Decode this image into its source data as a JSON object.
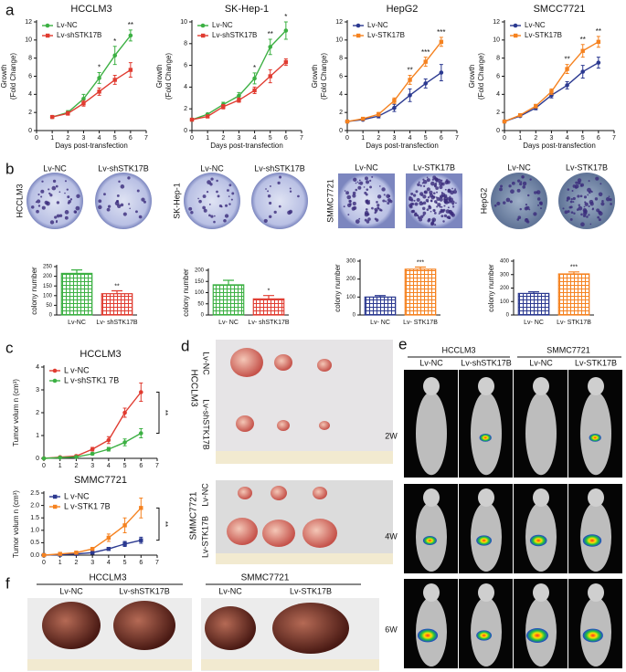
{
  "panel_labels": [
    "a",
    "b",
    "c",
    "d",
    "e",
    "f"
  ],
  "chart_data": [
    {
      "type": "line",
      "title": "HCCLM3",
      "ylabel": [
        "Growth",
        "(Fold Change)"
      ],
      "xlabel": "Days post-transfection",
      "x": [
        1,
        2,
        3,
        4,
        5,
        6
      ],
      "xlim": [
        0,
        7
      ],
      "xticks": [
        0,
        1,
        2,
        3,
        4,
        5,
        6,
        7
      ],
      "ylim": [
        0,
        12
      ],
      "yticks": [
        0,
        2,
        4,
        6,
        8,
        10,
        12
      ],
      "series": [
        {
          "name": "Lv-NC",
          "color": "#3cb043",
          "marker": "circle",
          "values": [
            1.5,
            2.0,
            3.5,
            5.8,
            8.3,
            10.5
          ],
          "errors": [
            0.1,
            0.2,
            0.5,
            0.6,
            1.0,
            0.6
          ]
        },
        {
          "name": "Lv-shSTK17B",
          "color": "#e03c31",
          "marker": "square",
          "values": [
            1.5,
            1.9,
            3.0,
            4.3,
            5.6,
            6.7
          ],
          "errors": [
            0.1,
            0.2,
            0.3,
            0.4,
            0.5,
            0.8
          ]
        }
      ],
      "annotations": [
        {
          "x": 4,
          "text": "*"
        },
        {
          "x": 5,
          "text": "*"
        },
        {
          "x": 6,
          "text": "**"
        }
      ]
    },
    {
      "type": "line",
      "title": "SK-Hep-1",
      "ylabel": [
        "Growth",
        "(Fold Change)"
      ],
      "xlabel": "Days post-transfection",
      "x": [
        0,
        1,
        2,
        3,
        4,
        5,
        6
      ],
      "xlim": [
        0,
        7
      ],
      "xticks": [
        0,
        1,
        2,
        3,
        4,
        5,
        6,
        7
      ],
      "ylim": [
        0,
        10
      ],
      "yticks": [
        0,
        2,
        4,
        6,
        8,
        10
      ],
      "series": [
        {
          "name": "Lv-NC",
          "color": "#3cb043",
          "marker": "circle",
          "values": [
            1.0,
            1.5,
            2.4,
            3.2,
            4.8,
            7.7,
            9.2
          ],
          "errors": [
            0.1,
            0.1,
            0.2,
            0.3,
            0.5,
            0.7,
            0.8
          ]
        },
        {
          "name": "Lv-shSTK17B",
          "color": "#e03c31",
          "marker": "square",
          "values": [
            1.0,
            1.3,
            2.2,
            2.8,
            3.7,
            5.0,
            6.3
          ],
          "errors": [
            0.1,
            0.1,
            0.2,
            0.2,
            0.3,
            0.6,
            0.3
          ]
        }
      ],
      "annotations": [
        {
          "x": 4,
          "text": "*"
        },
        {
          "x": 5,
          "text": "**"
        },
        {
          "x": 6,
          "text": "*"
        }
      ]
    },
    {
      "type": "line",
      "title": "HepG2",
      "ylabel": [
        "Growth",
        "(Fold Change)"
      ],
      "xlabel": "Days post-transfection",
      "x": [
        0,
        1,
        2,
        3,
        4,
        5,
        6
      ],
      "xlim": [
        0,
        7
      ],
      "xticks": [
        0,
        1,
        2,
        3,
        4,
        5,
        6,
        7
      ],
      "ylim": [
        0,
        12
      ],
      "yticks": [
        0,
        2,
        4,
        6,
        8,
        10,
        12
      ],
      "series": [
        {
          "name": "Lv-NC",
          "color": "#2b3990",
          "marker": "circle",
          "values": [
            1.0,
            1.2,
            1.6,
            2.5,
            3.9,
            5.2,
            6.4
          ],
          "errors": [
            0.1,
            0.1,
            0.2,
            0.4,
            0.7,
            0.5,
            0.9
          ]
        },
        {
          "name": "Lv-STK17B",
          "color": "#f58220",
          "marker": "square",
          "values": [
            1.0,
            1.3,
            1.8,
            3.3,
            5.6,
            7.6,
            9.8
          ],
          "errors": [
            0.1,
            0.1,
            0.2,
            0.3,
            0.5,
            0.5,
            0.5
          ]
        }
      ],
      "annotations": [
        {
          "x": 4,
          "text": "**"
        },
        {
          "x": 5,
          "text": "***"
        },
        {
          "x": 6,
          "text": "***"
        }
      ]
    },
    {
      "type": "line",
      "title": "SMCC7721",
      "ylabel": [
        "Growth",
        "(Fold Change)"
      ],
      "xlabel": "Days post-transfection",
      "x": [
        0,
        1,
        2,
        3,
        4,
        5,
        6
      ],
      "xlim": [
        0,
        7
      ],
      "xticks": [
        0,
        1,
        2,
        3,
        4,
        5,
        6,
        7
      ],
      "ylim": [
        0,
        12
      ],
      "yticks": [
        0,
        2,
        4,
        6,
        8,
        10,
        12
      ],
      "series": [
        {
          "name": "Lv-NC",
          "color": "#2b3990",
          "marker": "circle",
          "values": [
            1.0,
            1.6,
            2.5,
            3.9,
            5.0,
            6.5,
            7.5
          ],
          "errors": [
            0.1,
            0.1,
            0.2,
            0.3,
            0.4,
            0.7,
            0.6
          ]
        },
        {
          "name": "Lv-STK17B",
          "color": "#f58220",
          "marker": "square",
          "values": [
            1.0,
            1.7,
            2.7,
            4.3,
            6.8,
            8.8,
            9.8
          ],
          "errors": [
            0.1,
            0.1,
            0.2,
            0.3,
            0.5,
            0.7,
            0.6
          ]
        }
      ],
      "annotations": [
        {
          "x": 4,
          "text": "**"
        },
        {
          "x": 5,
          "text": "**"
        },
        {
          "x": 6,
          "text": "**"
        }
      ]
    },
    {
      "type": "bar",
      "ylabel": "colony number",
      "categories": [
        "Lv-NC",
        "Lv- shSTK17B"
      ],
      "values": [
        215,
        110
      ],
      "errors": [
        18,
        15
      ],
      "colors": [
        "#3cb043",
        "#e03c31"
      ],
      "ylim": [
        0,
        250
      ],
      "yticks": [
        0,
        50,
        100,
        150,
        200,
        250
      ],
      "significance": [
        null,
        "**"
      ]
    },
    {
      "type": "bar",
      "ylabel": "colony number",
      "categories": [
        "Lv- NC",
        "Lv- shSTK17B"
      ],
      "values": [
        135,
        72
      ],
      "errors": [
        20,
        15
      ],
      "colors": [
        "#3cb043",
        "#e03c31"
      ],
      "ylim": [
        0,
        200
      ],
      "yticks": [
        0,
        50,
        100,
        150,
        200
      ],
      "significance": [
        null,
        "*"
      ]
    },
    {
      "type": "bar",
      "ylabel": "colony number",
      "categories": [
        "Lv- NC",
        "Lv- STK17B"
      ],
      "values": [
        100,
        255
      ],
      "errors": [
        8,
        12
      ],
      "colors": [
        "#2b3990",
        "#f58220"
      ],
      "ylim": [
        0,
        300
      ],
      "yticks": [
        0,
        100,
        200,
        300
      ],
      "significance": [
        null,
        "***"
      ]
    },
    {
      "type": "bar",
      "ylabel": "colony number",
      "categories": [
        "Lv- NC",
        "Lv- STK17B"
      ],
      "values": [
        160,
        305
      ],
      "errors": [
        12,
        15
      ],
      "colors": [
        "#2b3990",
        "#f58220"
      ],
      "ylim": [
        0,
        400
      ],
      "yticks": [
        0,
        100,
        200,
        300,
        400
      ],
      "significance": [
        null,
        "***"
      ]
    },
    {
      "type": "line",
      "title": "HCCLM3",
      "ylabel": [
        "Tumor volum n (cm³)"
      ],
      "x": [
        0,
        1,
        2,
        3,
        4,
        5,
        6
      ],
      "xlim": [
        0,
        7
      ],
      "xticks": [
        0,
        1,
        2,
        3,
        4,
        5,
        6,
        7
      ],
      "ylim": [
        0,
        4
      ],
      "yticks": [
        0,
        1,
        2,
        3,
        4
      ],
      "series": [
        {
          "name": "L v-NC",
          "color": "#e03c31",
          "marker": "circle",
          "values": [
            0,
            0.05,
            0.1,
            0.4,
            0.8,
            2.0,
            2.9
          ],
          "errors": [
            0,
            0.02,
            0.05,
            0.08,
            0.15,
            0.2,
            0.4
          ]
        },
        {
          "name": "L v-shSTK1 7B",
          "color": "#3cb043",
          "marker": "circle",
          "values": [
            0,
            0.03,
            0.06,
            0.2,
            0.4,
            0.7,
            1.1
          ],
          "errors": [
            0,
            0.02,
            0.03,
            0.05,
            0.08,
            0.15,
            0.2
          ]
        }
      ],
      "annotations": [
        {
          "x": 6,
          "text": "**"
        }
      ],
      "bracket": true
    },
    {
      "type": "line",
      "title": "SMMC7721",
      "ylabel": [
        "Tumor volum n (cm³)"
      ],
      "x": [
        0,
        1,
        2,
        3,
        4,
        5,
        6
      ],
      "xlim": [
        0,
        7
      ],
      "xticks": [
        0,
        1,
        2,
        3,
        4,
        5,
        6,
        7
      ],
      "ylim": [
        0,
        2.5
      ],
      "yticks": [
        {
          "value": 0,
          "label": "0.0"
        },
        {
          "value": 0.5,
          "label": "0.5"
        },
        {
          "value": 1,
          "label": "1.0"
        },
        {
          "value": 1.5,
          "label": "1.5"
        },
        {
          "value": 2,
          "label": "2.0"
        },
        {
          "value": 2.5,
          "label": "2.5"
        }
      ],
      "series": [
        {
          "name": "L v-NC",
          "color": "#2b3990",
          "marker": "square",
          "values": [
            0,
            0.02,
            0.05,
            0.1,
            0.25,
            0.45,
            0.6
          ],
          "errors": [
            0,
            0.01,
            0.02,
            0.03,
            0.05,
            0.1,
            0.12
          ]
        },
        {
          "name": "L v-STK1 7B",
          "color": "#f58220",
          "marker": "square",
          "values": [
            0,
            0.05,
            0.1,
            0.25,
            0.7,
            1.2,
            1.9
          ],
          "errors": [
            0,
            0.02,
            0.03,
            0.05,
            0.15,
            0.3,
            0.4
          ]
        }
      ],
      "annotations": [
        {
          "x": 6,
          "text": "**"
        }
      ],
      "bracket": true
    }
  ],
  "photos": {
    "b": [
      {
        "side": "HCCLM3",
        "labels": [
          "Lv-NC",
          "Lv-shSTK17B"
        ]
      },
      {
        "side": "SK-Hep-1",
        "labels": [
          "Lv-NC",
          "Lv-shSTK17B"
        ]
      },
      {
        "side": "SMMC7721",
        "labels": [
          "Lv-NC",
          "Lv-STK17B"
        ]
      },
      {
        "side": "HepG2",
        "labels": [
          "Lv-NC",
          "Lv-STK17B"
        ]
      }
    ],
    "d": [
      {
        "cell": "HCCLM3",
        "rows": [
          "Lv-NC",
          "Lv-shSTK17B"
        ]
      },
      {
        "cell": "SMMC7721",
        "rows": [
          "Lv-NC",
          "Lv-STK17B"
        ]
      }
    ],
    "e": {
      "groups": [
        {
          "cell": "HCCLM3",
          "cols": [
            "Lv-NC",
            "Lv-shSTK17B"
          ]
        },
        {
          "cell": "SMMC7721",
          "cols": [
            "Lv-NC",
            "Lv-STK17B"
          ]
        }
      ],
      "times": [
        "2W",
        "4W",
        "6W"
      ]
    },
    "f": [
      {
        "cell": "HCCLM3",
        "cols": [
          "Lv-NC",
          "Lv-shSTK17B"
        ]
      },
      {
        "cell": "SMMC7721",
        "cols": [
          "Lv-NC",
          "Lv-STK17B"
        ]
      }
    ]
  }
}
